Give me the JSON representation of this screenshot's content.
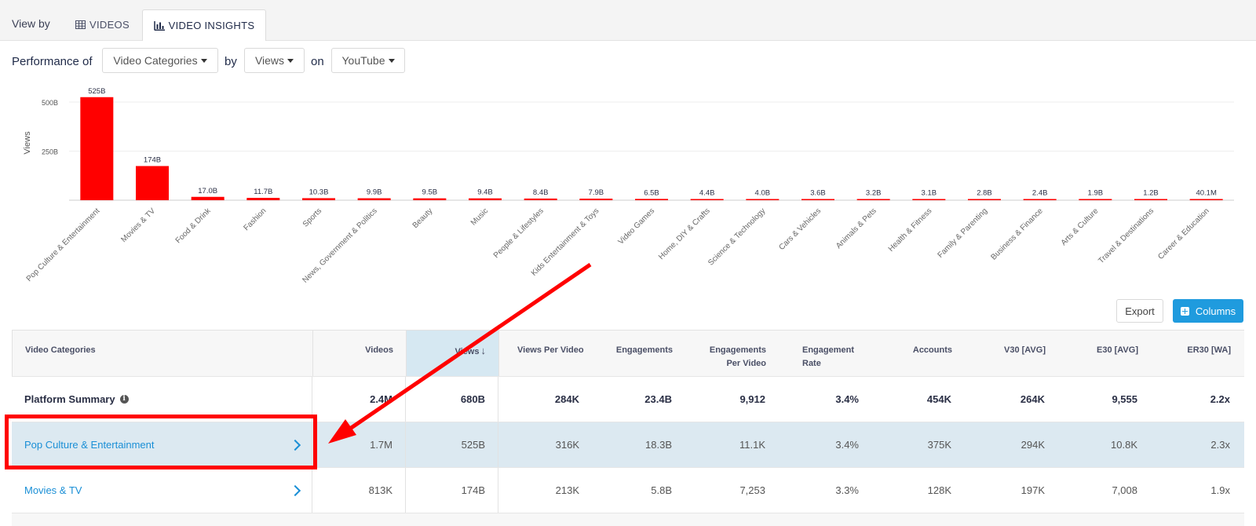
{
  "tabs": {
    "view_by": "View by",
    "videos": "VIDEOS",
    "insights": "VIDEO INSIGHTS"
  },
  "performance": {
    "label": "Performance of",
    "by": "by",
    "on": "on",
    "metric_type": "Video Categories",
    "metric": "Views",
    "platform": "YouTube"
  },
  "colors": {
    "bar": "#ff0000",
    "accent": "#1f9bde",
    "link": "#1a8fd6",
    "highlight_row": "#dce9f1",
    "annotation": "#ff0000"
  },
  "chart_data": {
    "type": "bar",
    "ylabel": "Views",
    "y_ticks": [
      "250B",
      "500B"
    ],
    "categories": [
      "Pop Culture & Entertainment",
      "Movies & TV",
      "Food & Drink",
      "Fashion",
      "Sports",
      "News, Government & Politics",
      "Beauty",
      "Music",
      "People & Lifestyles",
      "Kids Entertainment & Toys",
      "Video Games",
      "Home, DIY & Crafts",
      "Science & Technology",
      "Cars & Vehicles",
      "Animals & Pets",
      "Health & Fitness",
      "Family & Parenting",
      "Business & Finance",
      "Arts & Culture",
      "Travel & Destinations",
      "Career & Education"
    ],
    "values": [
      525,
      174,
      17.0,
      11.7,
      10.3,
      9.9,
      9.5,
      9.4,
      8.4,
      7.9,
      6.5,
      4.4,
      4.0,
      3.6,
      3.2,
      3.1,
      2.8,
      2.4,
      1.9,
      1.2,
      0.0401
    ],
    "value_labels": [
      "525B",
      "174B",
      "17.0B",
      "11.7B",
      "10.3B",
      "9.9B",
      "9.5B",
      "9.4B",
      "8.4B",
      "7.9B",
      "6.5B",
      "4.4B",
      "4.0B",
      "3.6B",
      "3.2B",
      "3.1B",
      "2.8B",
      "2.4B",
      "1.9B",
      "1.2B",
      "40.1M"
    ],
    "unit": "billions",
    "ylim": [
      0,
      560
    ],
    "grid": true
  },
  "buttons": {
    "export": "Export",
    "columns": "Columns"
  },
  "table": {
    "headers": [
      "Video Categories",
      "Videos",
      "Views",
      "Views Per Video",
      "Engagements",
      "Engagements Per Video",
      "Engagement Rate",
      "Accounts",
      "V30 [AVG]",
      "E30 [AVG]",
      "ER30 [WA]"
    ],
    "sort_indicator": "↓",
    "summary": {
      "label": "Platform Summary",
      "info_icon": "i",
      "values": [
        "2.4M",
        "680B",
        "284K",
        "23.4B",
        "9,912",
        "3.4%",
        "454K",
        "264K",
        "9,555",
        "2.2x"
      ]
    },
    "rows": [
      {
        "label": "Pop Culture & Entertainment",
        "values": [
          "1.7M",
          "525B",
          "316K",
          "18.3B",
          "11.1K",
          "3.4%",
          "375K",
          "294K",
          "10.8K",
          "2.3x"
        ]
      },
      {
        "label": "Movies & TV",
        "values": [
          "813K",
          "174B",
          "213K",
          "5.8B",
          "7,253",
          "3.3%",
          "128K",
          "197K",
          "7,008",
          "1.9x"
        ]
      }
    ]
  }
}
